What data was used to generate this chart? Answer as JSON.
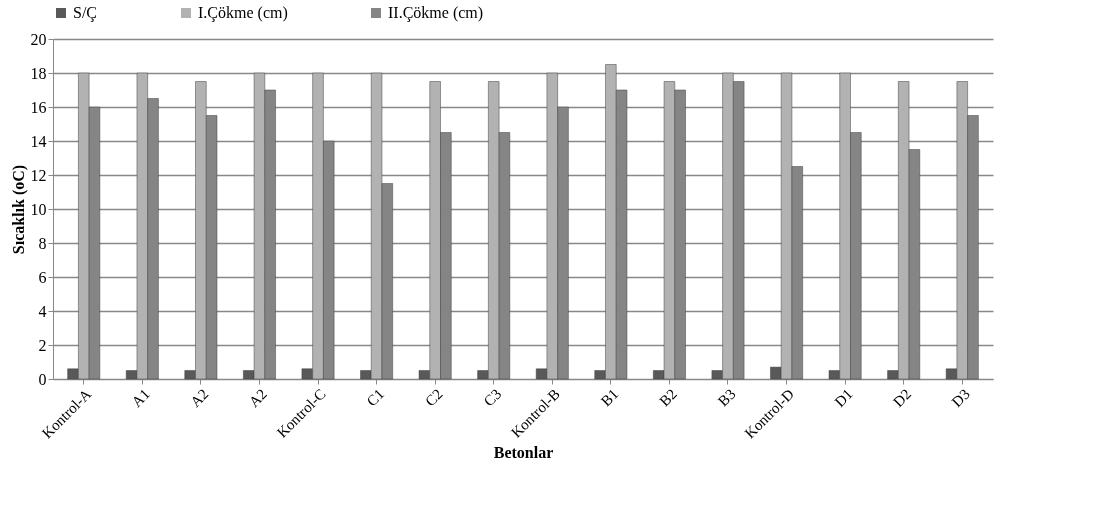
{
  "chart_data": {
    "type": "bar",
    "xlabel": "Betonlar",
    "ylabel": "Sıcaklık (oC)",
    "categories": [
      "Kontrol-A",
      "A1",
      "A2",
      "A2",
      "Kontrol-C",
      "C1",
      "C2",
      "C3",
      "Kontrol-B",
      "B1",
      "B2",
      "B3",
      "Kontrol-D",
      "D1",
      "D2",
      "D3"
    ],
    "series": [
      {
        "name": "S/Ç",
        "color": "#595959",
        "values": [
          0.6,
          0.5,
          0.5,
          0.5,
          0.6,
          0.5,
          0.5,
          0.5,
          0.6,
          0.5,
          0.5,
          0.5,
          0.7,
          0.5,
          0.5,
          0.6
        ]
      },
      {
        "name": "I.Çökme (cm)",
        "color": "#b2b2b2",
        "values": [
          18,
          18,
          17.5,
          18,
          18,
          18,
          17.5,
          17.5,
          18,
          18.5,
          17.5,
          18,
          18,
          18,
          17.5,
          17.5
        ]
      },
      {
        "name": "II.Çökme (cm)",
        "color": "#858585",
        "values": [
          16,
          16.5,
          15.5,
          17,
          14,
          11.5,
          14.5,
          14.5,
          16,
          17,
          17,
          17.5,
          12.5,
          14.5,
          13.5,
          15.5
        ]
      }
    ],
    "ylim": [
      0,
      20
    ],
    "yticks": [
      0,
      2,
      4,
      6,
      8,
      10,
      12,
      14,
      16,
      18,
      20
    ],
    "grid": "y",
    "legend": "top"
  }
}
